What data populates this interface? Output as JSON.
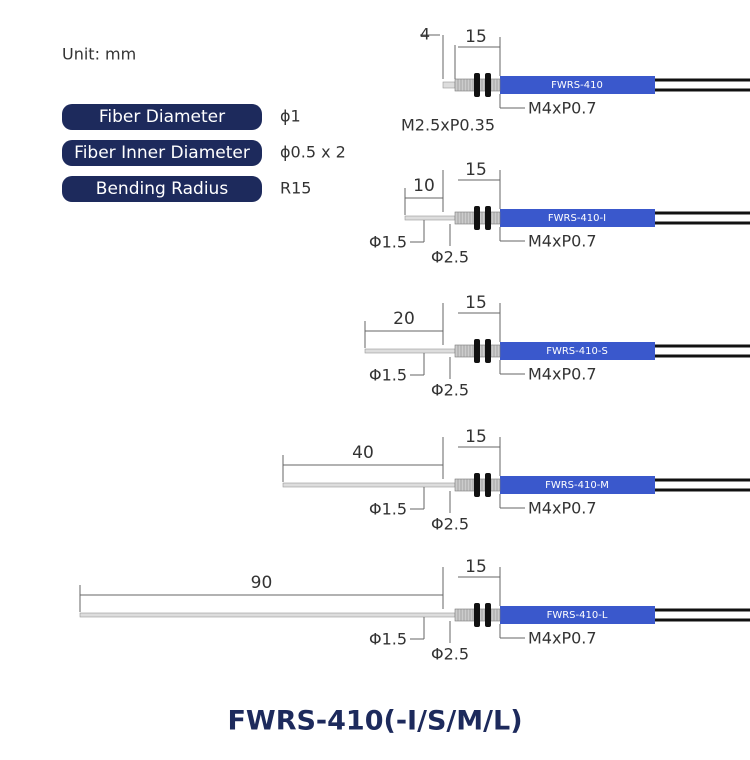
{
  "unit": "Unit: mm",
  "specs": [
    {
      "label": "Fiber Diameter",
      "value": "ϕ1"
    },
    {
      "label": "Fiber Inner Diameter",
      "value": "ϕ0.5 x 2"
    },
    {
      "label": "Bending Radius",
      "value": "R15"
    }
  ],
  "drawings": [
    {
      "model": "FWRS-410",
      "tip": "4",
      "body": "15",
      "thread": "M2.5xP0.35",
      "nut": "M4xP0.7"
    },
    {
      "model": "FWRS-410-I",
      "tip": "10",
      "body": "15",
      "tip_diameter": "Φ1.5",
      "body_diameter": "Φ2.5",
      "nut": "M4xP0.7"
    },
    {
      "model": "FWRS-410-S",
      "tip": "20",
      "body": "15",
      "tip_diameter": "Φ1.5",
      "body_diameter": "Φ2.5",
      "nut": "M4xP0.7"
    },
    {
      "model": "FWRS-410-M",
      "tip": "40",
      "body": "15",
      "tip_diameter": "Φ1.5",
      "body_diameter": "Φ2.5",
      "nut": "M4xP0.7"
    },
    {
      "model": "FWRS-410-L",
      "tip": "90",
      "body": "15",
      "tip_diameter": "Φ1.5",
      "body_diameter": "Φ2.5",
      "nut": "M4xP0.7"
    }
  ],
  "footer": {
    "title": "FWRS-410(-I/S/M/L)"
  }
}
